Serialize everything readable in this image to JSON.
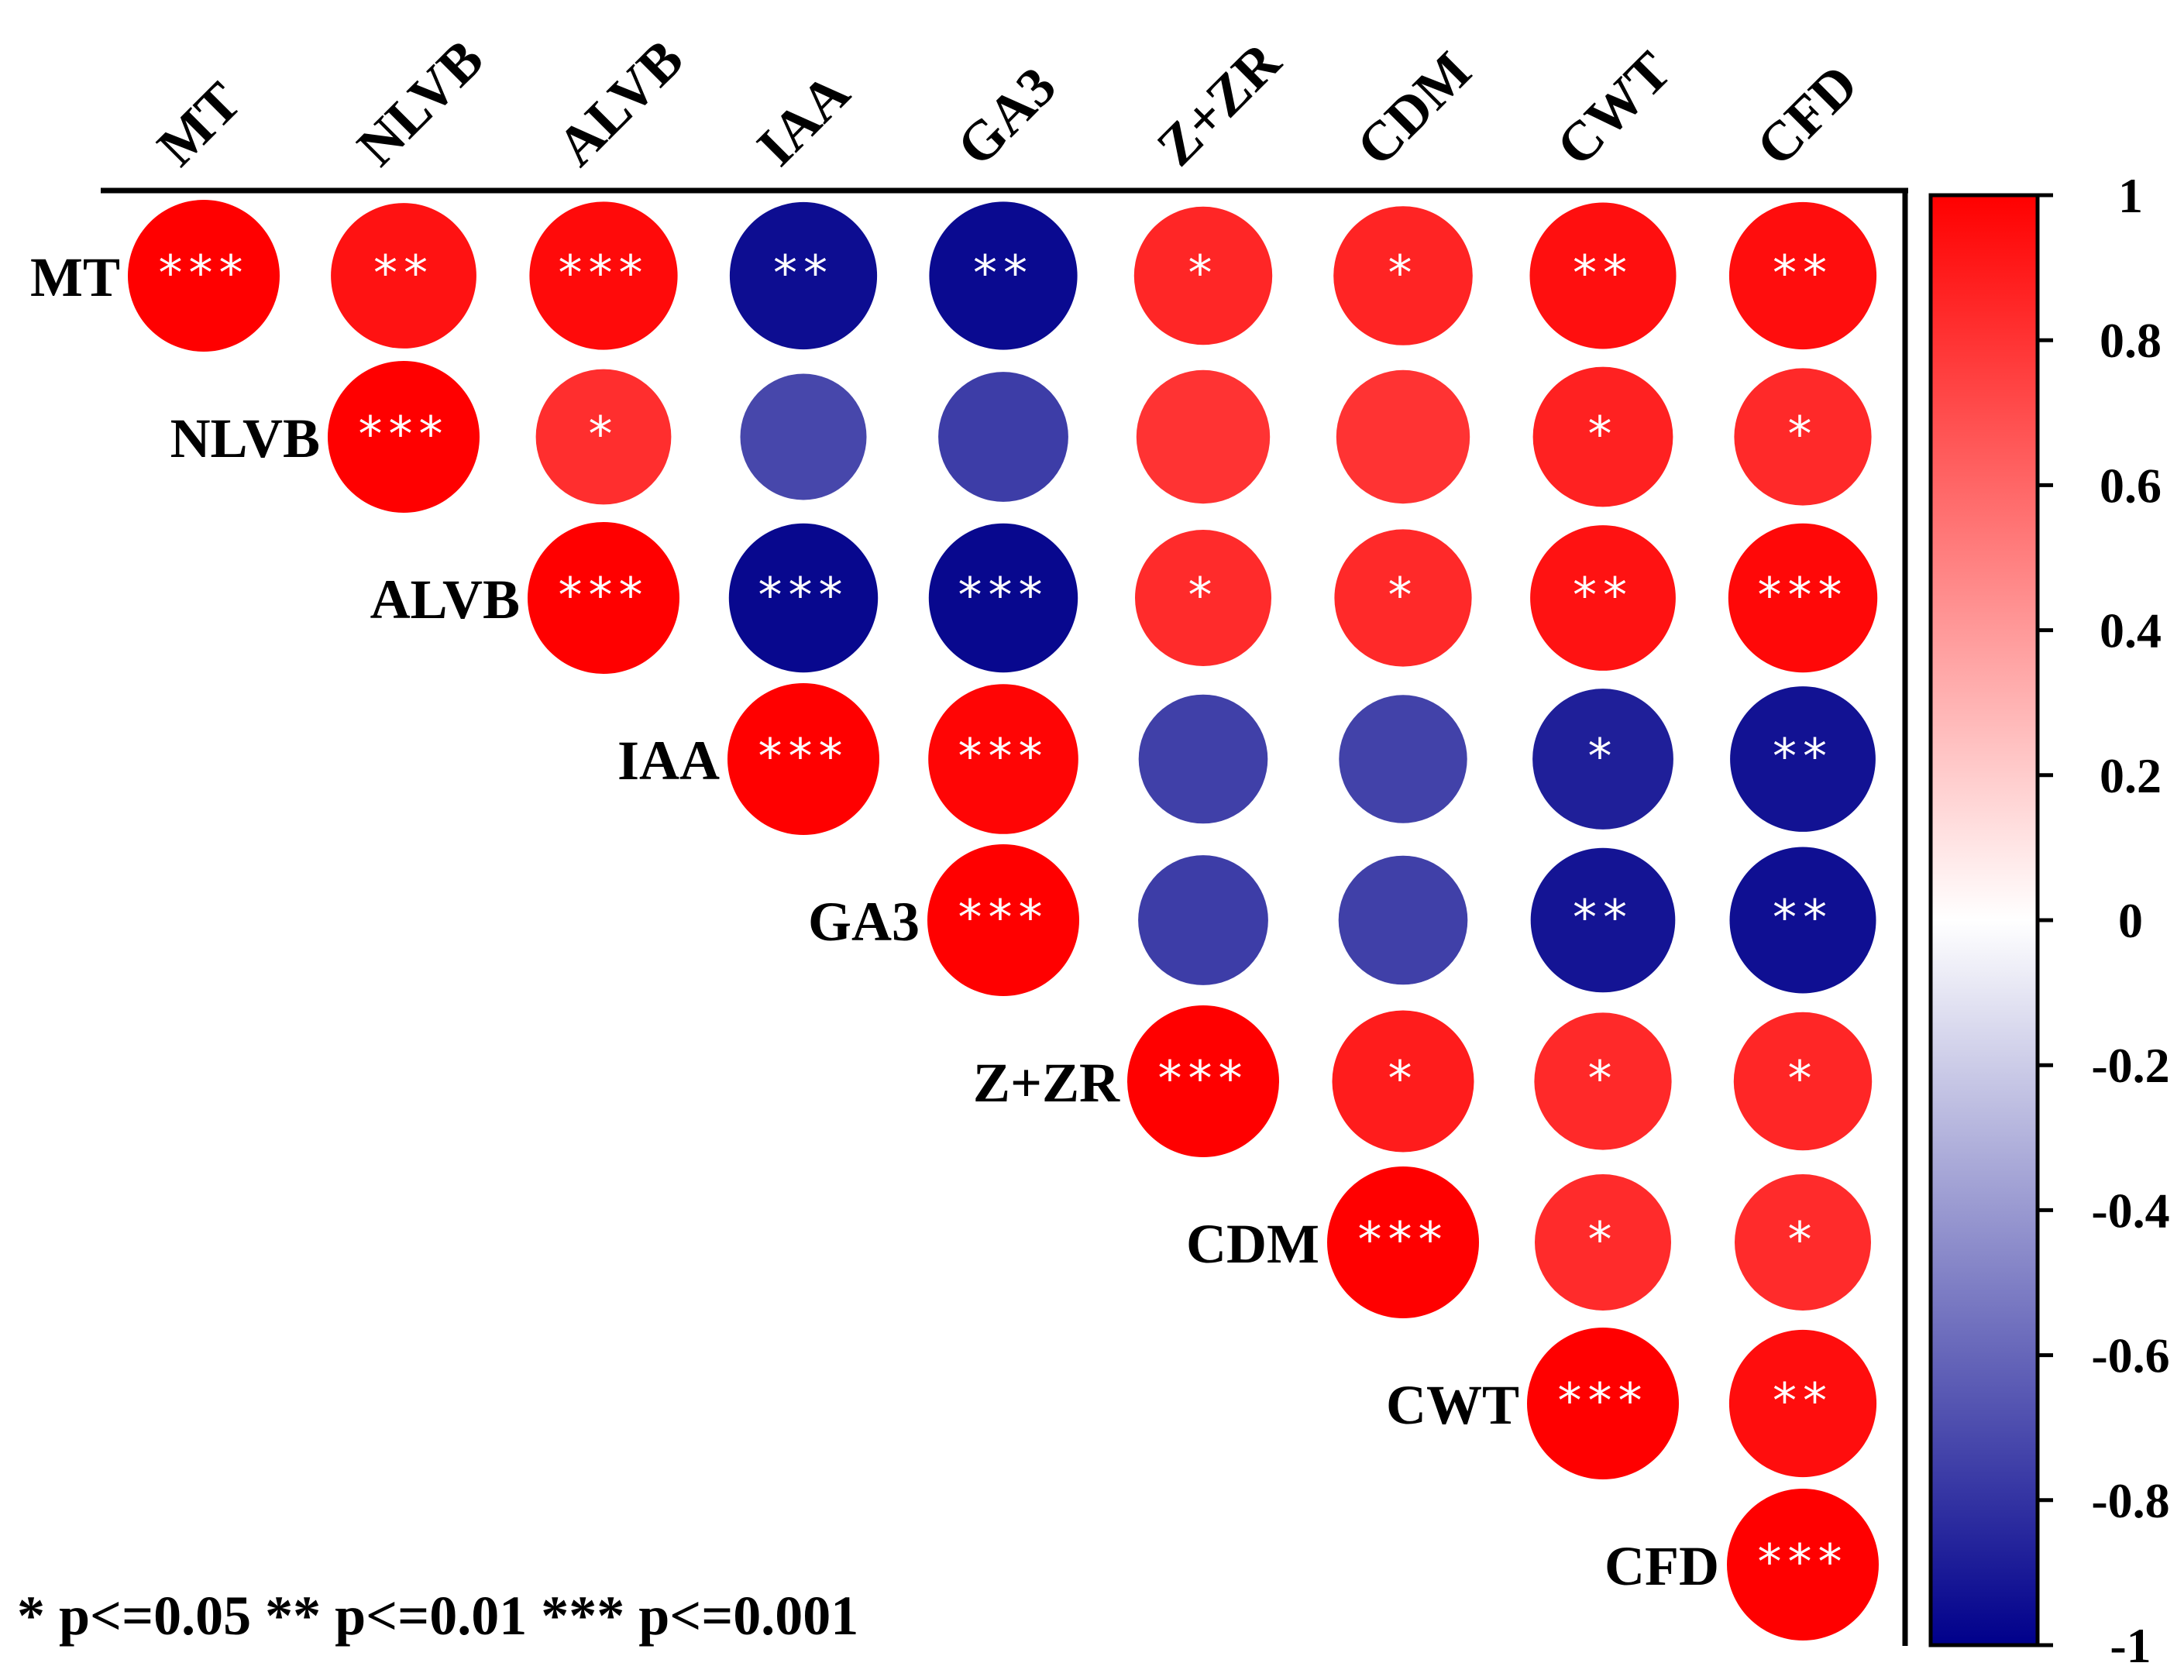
{
  "chart_data": {
    "type": "correlation-matrix",
    "variables": [
      "MT",
      "NLVB",
      "ALVB",
      "IAA",
      "GA3",
      "Z+ZR",
      "CDM",
      "CWT",
      "CFD"
    ],
    "cells": [
      {
        "row": "MT",
        "col": "MT",
        "r": 1.0,
        "sig": "***"
      },
      {
        "row": "MT",
        "col": "NLVB",
        "r": 0.93,
        "sig": "**"
      },
      {
        "row": "MT",
        "col": "ALVB",
        "r": 0.96,
        "sig": "***"
      },
      {
        "row": "MT",
        "col": "IAA",
        "r": -0.95,
        "sig": "**"
      },
      {
        "row": "MT",
        "col": "GA3",
        "r": -0.96,
        "sig": "**"
      },
      {
        "row": "MT",
        "col": "Z+ZR",
        "r": 0.85,
        "sig": "*"
      },
      {
        "row": "MT",
        "col": "CDM",
        "r": 0.86,
        "sig": "*"
      },
      {
        "row": "MT",
        "col": "CWT",
        "r": 0.94,
        "sig": "**"
      },
      {
        "row": "MT",
        "col": "CFD",
        "r": 0.95,
        "sig": "**"
      },
      {
        "row": "NLVB",
        "col": "NLVB",
        "r": 1.0,
        "sig": "***"
      },
      {
        "row": "NLVB",
        "col": "ALVB",
        "r": 0.82,
        "sig": "*"
      },
      {
        "row": "NLVB",
        "col": "IAA",
        "r": -0.72,
        "sig": ""
      },
      {
        "row": "NLVB",
        "col": "GA3",
        "r": -0.76,
        "sig": ""
      },
      {
        "row": "NLVB",
        "col": "Z+ZR",
        "r": 0.8,
        "sig": ""
      },
      {
        "row": "NLVB",
        "col": "CDM",
        "r": 0.8,
        "sig": ""
      },
      {
        "row": "NLVB",
        "col": "CWT",
        "r": 0.87,
        "sig": "*"
      },
      {
        "row": "NLVB",
        "col": "CFD",
        "r": 0.84,
        "sig": "*"
      },
      {
        "row": "ALVB",
        "col": "ALVB",
        "r": 1.0,
        "sig": "***"
      },
      {
        "row": "ALVB",
        "col": "IAA",
        "r": -0.97,
        "sig": "***"
      },
      {
        "row": "ALVB",
        "col": "GA3",
        "r": -0.97,
        "sig": "***"
      },
      {
        "row": "ALVB",
        "col": "Z+ZR",
        "r": 0.83,
        "sig": "*"
      },
      {
        "row": "ALVB",
        "col": "CDM",
        "r": 0.84,
        "sig": "*"
      },
      {
        "row": "ALVB",
        "col": "CWT",
        "r": 0.93,
        "sig": "**"
      },
      {
        "row": "ALVB",
        "col": "CFD",
        "r": 0.97,
        "sig": "***"
      },
      {
        "row": "IAA",
        "col": "IAA",
        "r": 1.0,
        "sig": "***"
      },
      {
        "row": "IAA",
        "col": "GA3",
        "r": 0.98,
        "sig": "***"
      },
      {
        "row": "IAA",
        "col": "Z+ZR",
        "r": -0.75,
        "sig": ""
      },
      {
        "row": "IAA",
        "col": "CDM",
        "r": -0.74,
        "sig": ""
      },
      {
        "row": "IAA",
        "col": "CWT",
        "r": -0.88,
        "sig": "*"
      },
      {
        "row": "IAA",
        "col": "CFD",
        "r": -0.93,
        "sig": "**"
      },
      {
        "row": "GA3",
        "col": "GA3",
        "r": 1.0,
        "sig": "***"
      },
      {
        "row": "GA3",
        "col": "Z+ZR",
        "r": -0.76,
        "sig": ""
      },
      {
        "row": "GA3",
        "col": "CDM",
        "r": -0.75,
        "sig": ""
      },
      {
        "row": "GA3",
        "col": "CWT",
        "r": -0.92,
        "sig": "**"
      },
      {
        "row": "GA3",
        "col": "CFD",
        "r": -0.94,
        "sig": "**"
      },
      {
        "row": "Z+ZR",
        "col": "Z+ZR",
        "r": 1.0,
        "sig": "***"
      },
      {
        "row": "Z+ZR",
        "col": "CDM",
        "r": 0.89,
        "sig": "*"
      },
      {
        "row": "Z+ZR",
        "col": "CWT",
        "r": 0.84,
        "sig": "*"
      },
      {
        "row": "Z+ZR",
        "col": "CFD",
        "r": 0.85,
        "sig": "*"
      },
      {
        "row": "CDM",
        "col": "CDM",
        "r": 1.0,
        "sig": "***"
      },
      {
        "row": "CDM",
        "col": "CWT",
        "r": 0.83,
        "sig": "*"
      },
      {
        "row": "CDM",
        "col": "CFD",
        "r": 0.83,
        "sig": "*"
      },
      {
        "row": "CWT",
        "col": "CWT",
        "r": 1.0,
        "sig": "***"
      },
      {
        "row": "CWT",
        "col": "CFD",
        "r": 0.95,
        "sig": "**"
      },
      {
        "row": "CFD",
        "col": "CFD",
        "r": 1.0,
        "sig": "***"
      }
    ],
    "colorbar": {
      "min": -1,
      "max": 1,
      "ticks": [
        "1",
        "0.8",
        "0.6",
        "0.4",
        "0.2",
        "0",
        "-0.2",
        "-0.4",
        "-0.6",
        "-0.8",
        "-1"
      ],
      "colors": {
        "high": "#ff0000",
        "mid": "#ffffff",
        "low": "#00008b"
      }
    },
    "legend_text": "* p<=0.05  ** p<=0.01  *** p<=0.001"
  }
}
